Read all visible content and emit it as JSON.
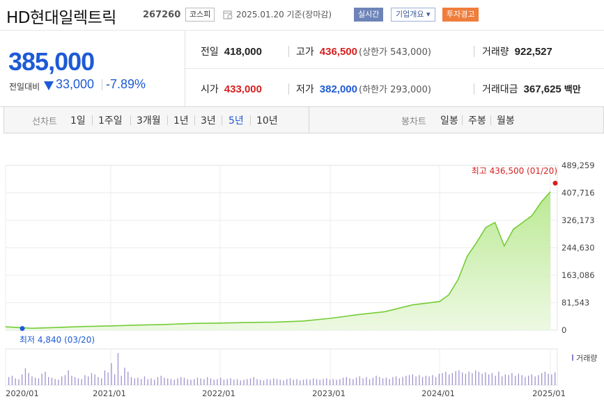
{
  "stock": {
    "name": "HD현대일렉트릭",
    "code": "267260",
    "market": "코스피",
    "date_text": "2025.01.20 기준(장마감)",
    "badge_realtime": "실시간",
    "badge_overview": "기업개요 ▾",
    "badge_warning": "투자경고"
  },
  "price": {
    "current": "385,000",
    "change_label": "전일대비",
    "change_amount": "33,000",
    "change_percent": "-7.89%",
    "direction": "down"
  },
  "details": {
    "prev_close_label": "전일",
    "prev_close": "418,000",
    "high_label": "고가",
    "high": "436,500",
    "upper_limit": "(상한가 543,000)",
    "volume_label": "거래량",
    "volume": "922,527",
    "open_label": "시가",
    "open": "433,000",
    "low_label": "저가",
    "low": "382,000",
    "lower_limit": "(하한가 293,000)",
    "turnover_label": "거래대금",
    "turnover": "367,625",
    "turnover_unit": "백만"
  },
  "tabs": {
    "line_label": "선차트",
    "line_items": [
      "1일",
      "1주일",
      "3개월",
      "1년",
      "3년",
      "5년",
      "10년"
    ],
    "active_index": 5,
    "candle_label": "봉차트",
    "candle_items": [
      "일봉",
      "주봉",
      "월봉"
    ]
  },
  "colors": {
    "up": "#d71f1f",
    "down": "#1d5ad6",
    "line": "#74cc36",
    "volume": "#8f7fc7"
  },
  "chart_data": {
    "type": "area",
    "yticks": [
      "489,259",
      "407,716",
      "326,173",
      "244,630",
      "163,086",
      "81,543",
      "0"
    ],
    "ylim": [
      0,
      489259
    ],
    "xticks": [
      "2020/01",
      "2021/01",
      "2022/01",
      "2023/01",
      "2024/01",
      "2025/01"
    ],
    "x": [
      "2020/01",
      "2020/04",
      "2020/07",
      "2020/10",
      "2021/01",
      "2021/04",
      "2021/07",
      "2021/10",
      "2022/01",
      "2022/04",
      "2022/07",
      "2022/10",
      "2023/01",
      "2023/04",
      "2023/07",
      "2023/10",
      "2024/01",
      "2024/02",
      "2024/03",
      "2024/04",
      "2024/05",
      "2024/06",
      "2024/07",
      "2024/08",
      "2024/09",
      "2024/10",
      "2024/11",
      "2024/12",
      "2025/01"
    ],
    "series": [
      {
        "values": [
          10000,
          5500,
          8000,
          11000,
          12500,
          15000,
          17000,
          20000,
          21000,
          23000,
          24000,
          27000,
          35000,
          46000,
          55000,
          75000,
          85000,
          105000,
          150000,
          220000,
          260000,
          305000,
          320000,
          250000,
          300000,
          320000,
          340000,
          380000,
          411000
        ]
      }
    ],
    "annotations": {
      "high_text": "최고 436,500 (01/20)",
      "low_text": "최저 4,840 (03/20)"
    },
    "volume_legend": "거래량",
    "volume_values": [
      12,
      14,
      10,
      9,
      16,
      25,
      18,
      13,
      11,
      10,
      17,
      20,
      12,
      11,
      9,
      8,
      13,
      15,
      22,
      14,
      12,
      10,
      9,
      15,
      13,
      18,
      16,
      12,
      10,
      22,
      19,
      33,
      16,
      48,
      14,
      26,
      20,
      12,
      10,
      11,
      9,
      13,
      9,
      10,
      8,
      12,
      14,
      11,
      10,
      9,
      8,
      10,
      12,
      11,
      9,
      8,
      9,
      11,
      10,
      9,
      12,
      10,
      8,
      9,
      11,
      8,
      9,
      10,
      8,
      9,
      7,
      8,
      9,
      10,
      12,
      9,
      8,
      7,
      9,
      8,
      10,
      9,
      8,
      7,
      9,
      10,
      8,
      9,
      7,
      8,
      9,
      8,
      10,
      9,
      8,
      9,
      10,
      8,
      9,
      8,
      9,
      11,
      12,
      10,
      9,
      11,
      13,
      10,
      12,
      9,
      11,
      14,
      12,
      10,
      11,
      9,
      12,
      13,
      10,
      12,
      14,
      15,
      16,
      13,
      15,
      12,
      14,
      13,
      15,
      12,
      17,
      18,
      20,
      16,
      18,
      21,
      22,
      19,
      17,
      20,
      18,
      22,
      20,
      17,
      19,
      16,
      18,
      14,
      20,
      13,
      16,
      15,
      18,
      14,
      17,
      15,
      12,
      14,
      16,
      13,
      15,
      18,
      20,
      17,
      16,
      19
    ]
  }
}
